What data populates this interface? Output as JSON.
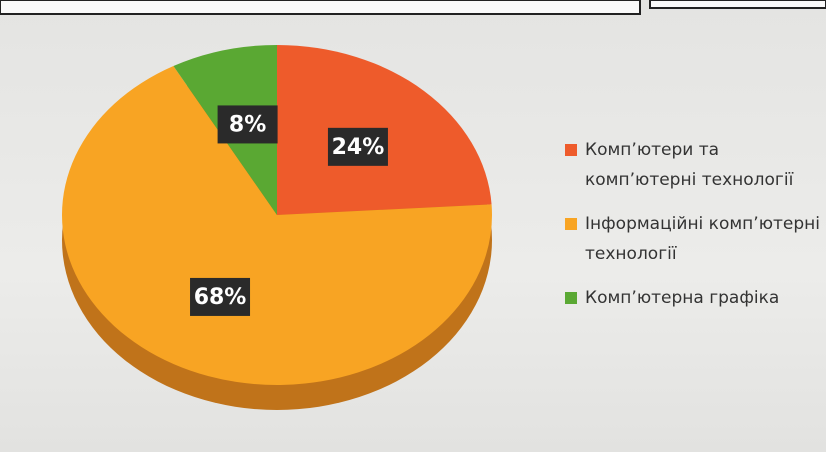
{
  "chart_data": {
    "type": "pie",
    "categories": [
      "Комп’ютери та комп’ютерні технології",
      "Інформаційні комп’ютерні технології",
      "Комп’ютерна графіка"
    ],
    "values": [
      24,
      68,
      8
    ],
    "value_labels": [
      "24%",
      "68%",
      "8%"
    ],
    "colors": [
      "#ee5b2b",
      "#f8a423",
      "#5aa833"
    ]
  }
}
